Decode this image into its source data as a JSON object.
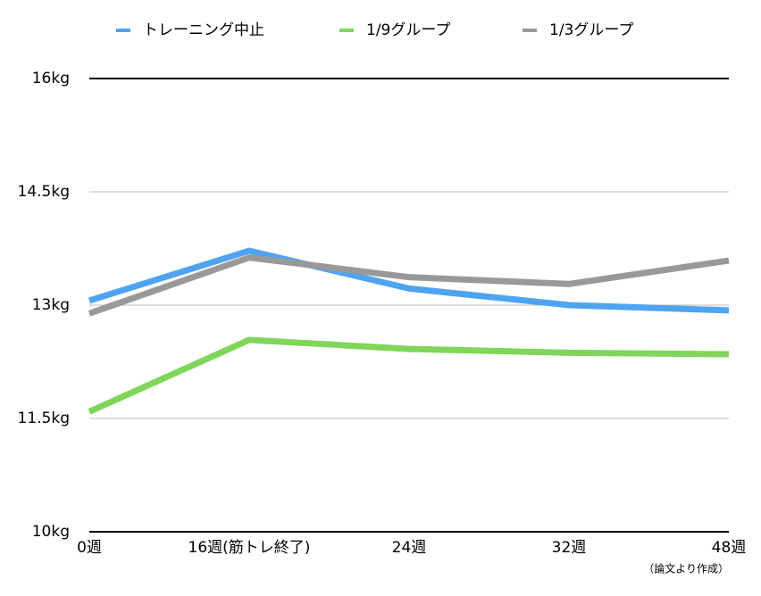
{
  "chart_data": {
    "type": "line",
    "categories": [
      "0週",
      "16週(筋トレ終了)",
      "24週",
      "32週",
      "48週"
    ],
    "series": [
      {
        "name": "トレーニング中止",
        "color": "#4ea4f0",
        "values": [
          13.06,
          13.72,
          13.22,
          13.0,
          12.93
        ]
      },
      {
        "name": "1/9グループ",
        "color": "#80d65a",
        "values": [
          11.59,
          12.54,
          12.42,
          12.37,
          12.35
        ]
      },
      {
        "name": "1/3グループ",
        "color": "#999999",
        "values": [
          12.89,
          13.63,
          13.37,
          13.28,
          13.59
        ]
      }
    ],
    "ylim": [
      10,
      16
    ],
    "yticks": [
      {
        "value": 10,
        "label": "10kg"
      },
      {
        "value": 11.5,
        "label": "11.5kg"
      },
      {
        "value": 13,
        "label": "13kg"
      },
      {
        "value": 14.5,
        "label": "14.5kg"
      },
      {
        "value": 16,
        "label": "16kg"
      }
    ],
    "grid": true,
    "legend": "top",
    "annotation": "（論文より作成）"
  }
}
